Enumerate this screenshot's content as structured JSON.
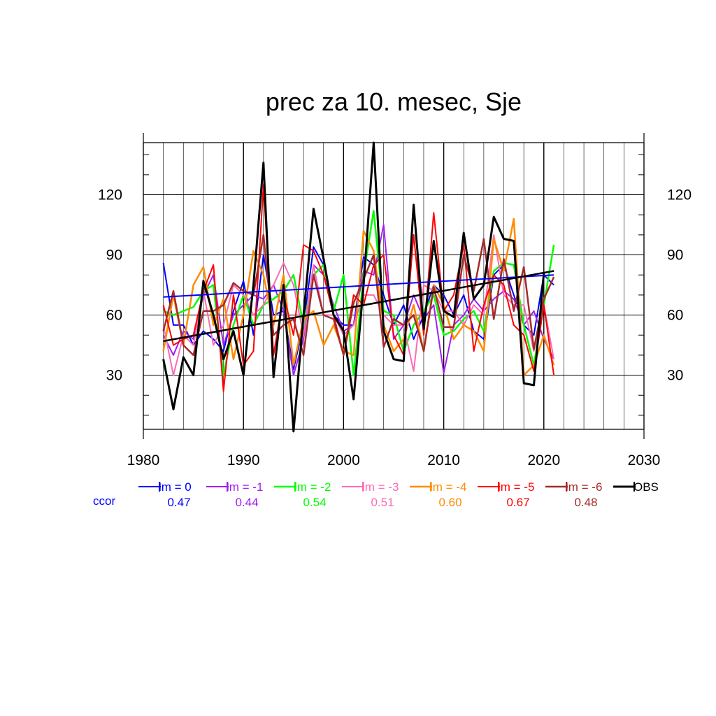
{
  "chart_data": {
    "type": "line",
    "title": "prec za 10. mesec, Sje",
    "xlim": [
      1980,
      2030
    ],
    "ylim": [
      3,
      146
    ],
    "x_ticks": [
      1980,
      1990,
      2000,
      2010,
      2020,
      2030
    ],
    "y_ticks": [
      30,
      60,
      90,
      120
    ],
    "grid": true,
    "legend_position": "bottom",
    "x": [
      1982,
      1983,
      1984,
      1985,
      1986,
      1987,
      1988,
      1989,
      1990,
      1991,
      1992,
      1993,
      1994,
      1995,
      1996,
      1997,
      1998,
      1999,
      2000,
      2001,
      2002,
      2003,
      2004,
      2005,
      2006,
      2007,
      2008,
      2009,
      2010,
      2011,
      2012,
      2013,
      2014,
      2015,
      2016,
      2017,
      2018,
      2019,
      2020,
      2021
    ],
    "series": [
      {
        "name": "lm = 0",
        "color": "#0000ff",
        "width": 2,
        "values": [
          86,
          55,
          55,
          45,
          52,
          48,
          42,
          62,
          77,
          50,
          90,
          60,
          62,
          33,
          55,
          94,
          85,
          60,
          55,
          55,
          89,
          85,
          70,
          55,
          65,
          48,
          60,
          75,
          70,
          60,
          70,
          52,
          48,
          80,
          85,
          70,
          55,
          50,
          80,
          75
        ],
        "trend": [
          69,
          80
        ],
        "ccor": "0.47"
      },
      {
        "name": "lm = -1",
        "color": "#a020f0",
        "width": 2,
        "values": [
          50,
          40,
          52,
          48,
          70,
          80,
          45,
          60,
          65,
          70,
          68,
          75,
          62,
          30,
          48,
          85,
          80,
          65,
          52,
          55,
          82,
          80,
          105,
          48,
          55,
          70,
          58,
          65,
          31,
          55,
          60,
          68,
          62,
          68,
          72,
          68,
          55,
          62,
          48,
          38
        ],
        "ccor": "0.44"
      },
      {
        "name": "lm = -2",
        "color": "#00ff00",
        "width": 2.5,
        "values": [
          62,
          60,
          62,
          64,
          72,
          75,
          30,
          55,
          70,
          55,
          65,
          68,
          72,
          80,
          55,
          80,
          85,
          62,
          80,
          30,
          80,
          112,
          62,
          60,
          42,
          55,
          62,
          70,
          50,
          52,
          58,
          62,
          52,
          82,
          86,
          85,
          55,
          35,
          65,
          95
        ],
        "ccor": "0.54"
      },
      {
        "name": "lm = -3",
        "color": "#ff69b4",
        "width": 2,
        "values": [
          55,
          30,
          50,
          45,
          72,
          45,
          55,
          75,
          70,
          60,
          65,
          75,
          86,
          75,
          50,
          85,
          60,
          60,
          50,
          55,
          70,
          70,
          60,
          55,
          55,
          32,
          75,
          72,
          62,
          62,
          55,
          65,
          60,
          100,
          70,
          65,
          65,
          42,
          65,
          38
        ],
        "ccor": "0.51"
      },
      {
        "name": "lm = -4",
        "color": "#ff8c00",
        "width": 2.5,
        "values": [
          42,
          70,
          45,
          75,
          84,
          55,
          68,
          38,
          60,
          92,
          80,
          55,
          80,
          35,
          58,
          62,
          45,
          55,
          42,
          40,
          102,
          92,
          55,
          42,
          48,
          65,
          42,
          75,
          65,
          48,
          55,
          52,
          42,
          98,
          82,
          108,
          30,
          35,
          50,
          35
        ],
        "ccor": "0.60"
      },
      {
        "name": "lm = -5",
        "color": "#ff0000",
        "width": 2,
        "values": [
          65,
          45,
          48,
          50,
          72,
          85,
          22,
          70,
          35,
          42,
          125,
          40,
          70,
          50,
          95,
          92,
          80,
          60,
          40,
          70,
          65,
          85,
          90,
          50,
          40,
          100,
          50,
          111,
          62,
          70,
          95,
          42,
          65,
          80,
          75,
          55,
          50,
          32,
          65,
          30
        ],
        "ccor": "0.67"
      },
      {
        "name": "lm = -6",
        "color": "#a52a2a",
        "width": 2.5,
        "values": [
          52,
          72,
          45,
          40,
          62,
          62,
          65,
          76,
          72,
          70,
          100,
          50,
          55,
          58,
          40,
          80,
          60,
          58,
          40,
          66,
          78,
          90,
          44,
          58,
          55,
          60,
          42,
          74,
          54,
          54,
          90,
          72,
          98,
          58,
          88,
          62,
          84,
          43,
          68,
          79
        ],
        "ccor": "0.48"
      },
      {
        "name": "OBS",
        "color": "#000000",
        "width": 3,
        "values": [
          38,
          13,
          39,
          30,
          77,
          60,
          38,
          52,
          30,
          75,
          136,
          29,
          75,
          2,
          60,
          113,
          88,
          60,
          52,
          18,
          75,
          146,
          52,
          38,
          37,
          115,
          53,
          97,
          62,
          59,
          101,
          68,
          75,
          109,
          98,
          97,
          26,
          25,
          81,
          null
        ],
        "trend": [
          47,
          82
        ]
      }
    ]
  },
  "ccor_label": "ccor"
}
